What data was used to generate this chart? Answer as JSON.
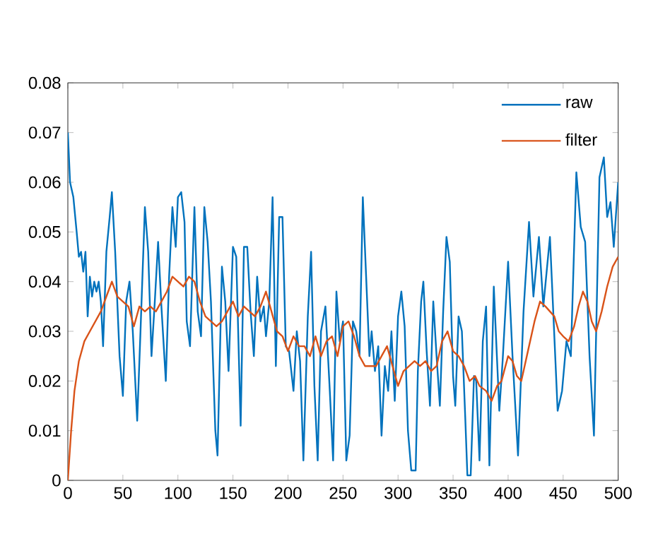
{
  "chart_data": {
    "type": "line",
    "xlim": [
      0,
      500
    ],
    "ylim": [
      0,
      0.08
    ],
    "xticks": [
      0,
      50,
      100,
      150,
      200,
      250,
      300,
      350,
      400,
      450,
      500
    ],
    "yticks": [
      0,
      0.01,
      0.02,
      0.03,
      0.04,
      0.05,
      0.06,
      0.07,
      0.08
    ],
    "grid": false,
    "legend": "top right",
    "marker": "none",
    "line_style": "solid",
    "series": [
      {
        "name": "raw",
        "color": "#0072bd",
        "x": [
          0,
          2,
          5,
          8,
          10,
          12,
          14,
          16,
          18,
          20,
          22,
          24,
          26,
          28,
          30,
          32,
          35,
          38,
          40,
          43,
          47,
          50,
          53,
          56,
          59,
          63,
          66,
          70,
          73,
          76,
          79,
          82,
          85,
          89,
          92,
          95,
          98,
          100,
          103,
          106,
          108,
          111,
          115,
          118,
          121,
          124,
          127,
          130,
          134,
          136,
          140,
          143,
          146,
          150,
          153,
          157,
          160,
          163,
          166,
          169,
          172,
          175,
          178,
          180,
          183,
          186,
          189,
          192,
          195,
          198,
          201,
          205,
          208,
          211,
          214,
          218,
          221,
          224,
          227,
          230,
          234,
          238,
          241,
          244,
          247,
          250,
          253,
          256,
          259,
          262,
          265,
          268,
          271,
          274,
          276,
          279,
          282,
          285,
          288,
          291,
          294,
          297,
          300,
          303,
          306,
          309,
          312,
          316,
          318,
          321,
          323,
          326,
          329,
          332,
          335,
          338,
          341,
          344,
          347,
          350,
          352,
          355,
          358,
          361,
          363,
          366,
          369,
          371,
          374,
          377,
          380,
          383,
          387,
          392,
          395,
          400,
          404,
          409,
          414,
          419,
          423,
          428,
          432,
          438,
          445,
          449,
          453,
          457,
          462,
          466,
          470,
          474,
          478,
          483,
          487,
          490,
          493,
          496,
          500
        ],
        "values": [
          0.07,
          0.06,
          0.057,
          0.05,
          0.045,
          0.046,
          0.042,
          0.046,
          0.033,
          0.041,
          0.037,
          0.04,
          0.038,
          0.04,
          0.036,
          0.027,
          0.046,
          0.053,
          0.058,
          0.046,
          0.025,
          0.017,
          0.036,
          0.04,
          0.03,
          0.012,
          0.03,
          0.055,
          0.046,
          0.025,
          0.036,
          0.048,
          0.035,
          0.02,
          0.041,
          0.055,
          0.047,
          0.057,
          0.058,
          0.052,
          0.032,
          0.027,
          0.055,
          0.034,
          0.029,
          0.055,
          0.048,
          0.036,
          0.01,
          0.005,
          0.043,
          0.036,
          0.022,
          0.047,
          0.045,
          0.011,
          0.047,
          0.047,
          0.034,
          0.025,
          0.041,
          0.032,
          0.035,
          0.029,
          0.036,
          0.057,
          0.023,
          0.053,
          0.053,
          0.027,
          0.026,
          0.018,
          0.03,
          0.024,
          0.004,
          0.033,
          0.046,
          0.019,
          0.004,
          0.03,
          0.035,
          0.018,
          0.004,
          0.038,
          0.028,
          0.032,
          0.004,
          0.009,
          0.032,
          0.03,
          0.025,
          0.057,
          0.041,
          0.025,
          0.03,
          0.022,
          0.027,
          0.009,
          0.023,
          0.018,
          0.03,
          0.016,
          0.033,
          0.038,
          0.031,
          0.01,
          0.002,
          0.002,
          0.022,
          0.036,
          0.04,
          0.026,
          0.015,
          0.036,
          0.025,
          0.015,
          0.034,
          0.049,
          0.044,
          0.021,
          0.015,
          0.033,
          0.03,
          0.013,
          0.001,
          0.001,
          0.021,
          0.02,
          0.004,
          0.028,
          0.035,
          0.003,
          0.039,
          0.014,
          0.024,
          0.044,
          0.025,
          0.005,
          0.034,
          0.052,
          0.037,
          0.049,
          0.035,
          0.049,
          0.014,
          0.018,
          0.028,
          0.025,
          0.062,
          0.051,
          0.048,
          0.025,
          0.009,
          0.061,
          0.065,
          0.053,
          0.056,
          0.047,
          0.06
        ]
      },
      {
        "name": "filter",
        "color": "#d95319",
        "x": [
          0,
          3,
          6,
          10,
          15,
          20,
          25,
          30,
          35,
          40,
          45,
          50,
          55,
          60,
          65,
          70,
          75,
          80,
          85,
          90,
          95,
          100,
          105,
          110,
          115,
          120,
          125,
          130,
          135,
          140,
          145,
          150,
          155,
          160,
          165,
          170,
          175,
          180,
          185,
          190,
          195,
          200,
          205,
          210,
          215,
          220,
          225,
          230,
          235,
          240,
          245,
          250,
          255,
          260,
          265,
          270,
          275,
          280,
          285,
          290,
          295,
          300,
          305,
          310,
          315,
          320,
          325,
          330,
          335,
          340,
          345,
          350,
          355,
          360,
          365,
          370,
          374,
          380,
          385,
          390,
          394,
          400,
          404,
          408,
          412,
          418,
          424,
          429,
          434,
          438,
          442,
          446,
          450,
          455,
          460,
          464,
          468,
          472,
          476,
          480,
          485,
          490,
          495,
          500
        ],
        "values": [
          0,
          0.01,
          0.018,
          0.024,
          0.028,
          0.03,
          0.032,
          0.034,
          0.037,
          0.04,
          0.037,
          0.036,
          0.035,
          0.031,
          0.035,
          0.034,
          0.035,
          0.034,
          0.036,
          0.038,
          0.041,
          0.04,
          0.039,
          0.041,
          0.04,
          0.036,
          0.033,
          0.032,
          0.031,
          0.032,
          0.034,
          0.036,
          0.033,
          0.035,
          0.034,
          0.033,
          0.035,
          0.038,
          0.034,
          0.03,
          0.029,
          0.026,
          0.029,
          0.027,
          0.027,
          0.025,
          0.029,
          0.025,
          0.028,
          0.029,
          0.025,
          0.031,
          0.032,
          0.029,
          0.025,
          0.023,
          0.023,
          0.023,
          0.025,
          0.027,
          0.023,
          0.019,
          0.022,
          0.023,
          0.024,
          0.023,
          0.024,
          0.022,
          0.023,
          0.028,
          0.03,
          0.026,
          0.025,
          0.023,
          0.02,
          0.021,
          0.019,
          0.018,
          0.016,
          0.019,
          0.02,
          0.025,
          0.024,
          0.021,
          0.02,
          0.026,
          0.032,
          0.036,
          0.035,
          0.034,
          0.033,
          0.03,
          0.029,
          0.028,
          0.031,
          0.035,
          0.038,
          0.036,
          0.032,
          0.03,
          0.034,
          0.039,
          0.043,
          0.045
        ]
      }
    ]
  }
}
